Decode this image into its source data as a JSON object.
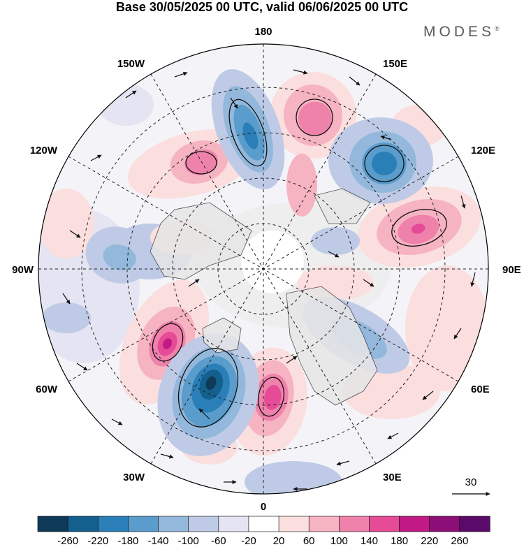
{
  "title": "Base 30/05/2025 00 UTC, valid 06/06/2025 00 UTC",
  "brand": "MODES",
  "brand_mark": "®",
  "longitude_labels": {
    "top": "180",
    "bottom": "0",
    "left": "90W",
    "right": "90E",
    "upper_left_1": "150W",
    "upper_left_2": "120W",
    "upper_right_1": "150E",
    "upper_right_2": "120E",
    "lower_left_1": "60W",
    "lower_left_2": "30W",
    "lower_right_1": "60E",
    "lower_right_2": "30E"
  },
  "vector_reference": {
    "label": "30"
  },
  "colorbar": {
    "ticks": [
      "-260",
      "-220",
      "-180",
      "-140",
      "-100",
      "-60",
      "-20",
      "20",
      "60",
      "100",
      "140",
      "180",
      "220",
      "260"
    ],
    "colors": [
      "#0e3a57",
      "#135f8d",
      "#2a7fb8",
      "#5a9ccb",
      "#93b8dc",
      "#bfcbe6",
      "#e4e4f2",
      "#ffffff",
      "#fbdede",
      "#f6b3c2",
      "#ef82ab",
      "#e54b96",
      "#c11a84",
      "#8c0f77",
      "#5a0a6a"
    ]
  },
  "map_colors": {
    "land": "#ebebeb",
    "border": "#000000"
  }
}
